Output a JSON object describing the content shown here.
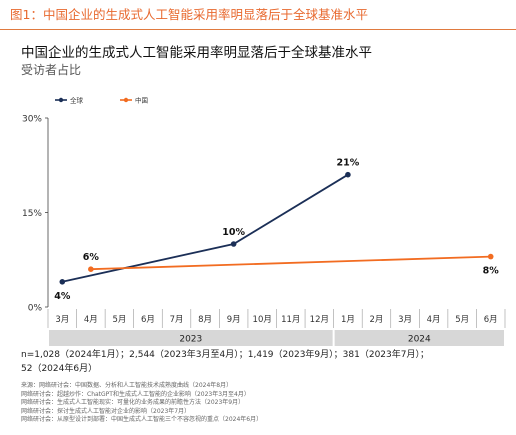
{
  "figure_label": "图1：中国企业的生成式人工智能采用率明显落后于全球基准水平",
  "colors": {
    "accent": "#e8692f",
    "global": "#1b2f57",
    "china": "#f26c21",
    "band": "#d7d7d7"
  },
  "chart_data": {
    "type": "line",
    "title": "中国企业的生成式人工智能采用率明显落后于全球基准水平",
    "subtitle": "受访者占比",
    "xlabel": "",
    "ylabel": "",
    "ylim": [
      0,
      30
    ],
    "yticks": [
      "0%",
      "15%",
      "30%"
    ],
    "y_tick_values": [
      0,
      15,
      30
    ],
    "months": [
      "3月",
      "4月",
      "5月",
      "6月",
      "7月",
      "8月",
      "9月",
      "10月",
      "11月",
      "12月",
      "1月",
      "2月",
      "3月",
      "4月",
      "5月",
      "6月"
    ],
    "years": [
      {
        "label": "2023",
        "start": 0,
        "end": 9
      },
      {
        "label": "2024",
        "start": 10,
        "end": 15
      }
    ],
    "legend_position": "top-left",
    "series": [
      {
        "name": "全球",
        "color": "#1b2f57",
        "points": [
          {
            "x": "2023-03",
            "y": 4,
            "label": "4%"
          },
          {
            "x": "2023-09",
            "y": 10,
            "label": "10%"
          },
          {
            "x": "2024-01",
            "y": 21,
            "label": "21%"
          }
        ]
      },
      {
        "name": "中国",
        "color": "#f26c21",
        "points": [
          {
            "x": "2023-04",
            "y": 6,
            "label": "6%"
          },
          {
            "x": "2024-06",
            "y": 8,
            "label": "8%"
          }
        ]
      }
    ]
  },
  "footnote": {
    "line1": "n=1,028（2024年1月）；2,544（2023年3月至4月）；1,419（2023年9月）；381（2023年7月）；",
    "line2": "52（2024年6月）"
  },
  "sources": [
    "来源：网络研讨会：中国数据、分析和人工智能技术成熟度曲线（2024年8月）",
    "网络研讨会：超越炒作：ChatGPT和生成式人工智能的企业影响（2023年3月至4月）",
    "网络研讨会：生成式人工智能现实：可量化的业务成果的前瞻性方法（2023年9月）",
    "网络研讨会：探讨生成式人工智能对企业的影响（2023年7月）",
    "网络研讨会：从原型设计到部署：中国生成式人工智能三个不容忽视的重点（2024年6月）"
  ]
}
